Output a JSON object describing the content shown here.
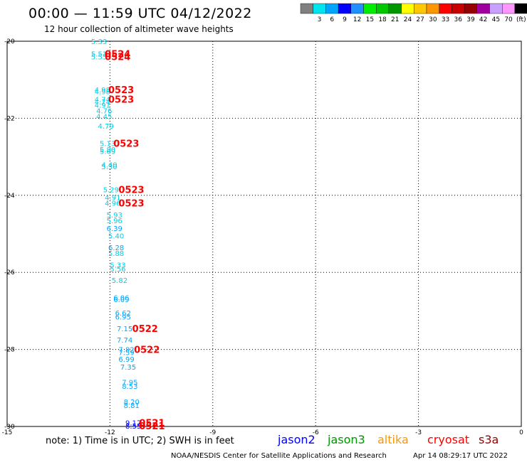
{
  "header": {
    "title": "00:00 — 11:59 UTC 04/12/2022",
    "subtitle": "12 hour collection of altimeter wave heights"
  },
  "color_scale": {
    "unit": "(ft)",
    "bins": [
      {
        "color": "#808080",
        "label": ""
      },
      {
        "color": "#00e5ee",
        "label": "3"
      },
      {
        "color": "#00a5ff",
        "label": "6"
      },
      {
        "color": "#0000ff",
        "label": "9"
      },
      {
        "color": "#1e90ff",
        "label": "12"
      },
      {
        "color": "#00ee00",
        "label": "15"
      },
      {
        "color": "#00c800",
        "label": "18"
      },
      {
        "color": "#009600",
        "label": "21"
      },
      {
        "color": "#ffff00",
        "label": "24"
      },
      {
        "color": "#ffc800",
        "label": "27"
      },
      {
        "color": "#ff9600",
        "label": "30"
      },
      {
        "color": "#ff0000",
        "label": "33"
      },
      {
        "color": "#c80000",
        "label": "36"
      },
      {
        "color": "#960000",
        "label": "39"
      },
      {
        "color": "#a000a0",
        "label": "42"
      },
      {
        "color": "#c8a0ff",
        "label": "45"
      },
      {
        "color": "#ff96ff",
        "label": "70"
      },
      {
        "color": "#000000",
        "label": ""
      }
    ]
  },
  "map": {
    "lon_min": -15,
    "lon_max": 0,
    "lat_min": -30,
    "lat_max": -20,
    "x_ticks": [
      {
        "value": -15,
        "label": "-15"
      },
      {
        "value": -12,
        "label": "-12"
      },
      {
        "value": -9,
        "label": "-9"
      },
      {
        "value": -6,
        "label": "-6"
      },
      {
        "value": -3,
        "label": "-3"
      },
      {
        "value": 0,
        "label": "0"
      }
    ],
    "y_ticks": [
      {
        "value": -20,
        "label": "-20"
      },
      {
        "value": -22,
        "label": "-22"
      },
      {
        "value": -24,
        "label": "-24"
      },
      {
        "value": -26,
        "label": "-26"
      },
      {
        "value": -28,
        "label": "-28"
      },
      {
        "value": -30,
        "label": "-30"
      }
    ],
    "swh_labels": [
      {
        "lon": -12.55,
        "lat": -20.0,
        "text": "5.33",
        "color": "#00d0e8"
      },
      {
        "lon": -12.55,
        "lat": -20.32,
        "text": "5.51",
        "color": "#00d0e8"
      },
      {
        "lon": -12.55,
        "lat": -20.4,
        "text": "5.55",
        "color": "#00d0e8"
      },
      {
        "lon": -12.45,
        "lat": -21.25,
        "text": "4.98",
        "color": "#00d0e8"
      },
      {
        "lon": -12.45,
        "lat": -21.3,
        "text": "4.98",
        "color": "#00d0e8"
      },
      {
        "lon": -12.45,
        "lat": -21.5,
        "text": "4.74",
        "color": "#00d0e8"
      },
      {
        "lon": -12.45,
        "lat": -21.57,
        "text": "4.74",
        "color": "#00d0e8"
      },
      {
        "lon": -12.45,
        "lat": -21.65,
        "text": "4.91",
        "color": "#00d0e8"
      },
      {
        "lon": -12.4,
        "lat": -21.8,
        "text": "4.76",
        "color": "#00d0e8"
      },
      {
        "lon": -12.4,
        "lat": -21.95,
        "text": "4.45",
        "color": "#00d0e8"
      },
      {
        "lon": -12.35,
        "lat": -22.2,
        "text": "4.79",
        "color": "#00d0e8"
      },
      {
        "lon": -12.3,
        "lat": -22.65,
        "text": "5.13",
        "color": "#00d0e8"
      },
      {
        "lon": -12.3,
        "lat": -22.8,
        "text": "5.80",
        "color": "#00d0e8"
      },
      {
        "lon": -12.3,
        "lat": -22.85,
        "text": "5.69",
        "color": "#00d0e8"
      },
      {
        "lon": -12.25,
        "lat": -23.2,
        "text": "4.40",
        "color": "#00d0e8"
      },
      {
        "lon": -12.25,
        "lat": -23.25,
        "text": "5.30",
        "color": "#00d0e8"
      },
      {
        "lon": -12.2,
        "lat": -23.85,
        "text": "5.29",
        "color": "#00d0e8"
      },
      {
        "lon": -12.15,
        "lat": -24.05,
        "text": "4.91",
        "color": "#00d0e8"
      },
      {
        "lon": -12.15,
        "lat": -24.2,
        "text": "4.96",
        "color": "#00d0e8"
      },
      {
        "lon": -12.1,
        "lat": -24.5,
        "text": "5.93",
        "color": "#00d0e8"
      },
      {
        "lon": -12.1,
        "lat": -24.65,
        "text": "5.96",
        "color": "#00d0e8"
      },
      {
        "lon": -12.1,
        "lat": -24.85,
        "text": "6.39",
        "color": "#00a5ff"
      },
      {
        "lon": -12.05,
        "lat": -25.05,
        "text": "5.40",
        "color": "#00d0e8"
      },
      {
        "lon": -12.05,
        "lat": -25.35,
        "text": "6.28",
        "color": "#00a5ff"
      },
      {
        "lon": -12.05,
        "lat": -25.5,
        "text": "5.88",
        "color": "#00d0e8"
      },
      {
        "lon": -12.0,
        "lat": -25.8,
        "text": "5.33",
        "color": "#00d0e8"
      },
      {
        "lon": -12.0,
        "lat": -25.9,
        "text": "5.56",
        "color": "#00d0e8"
      },
      {
        "lon": -11.95,
        "lat": -26.2,
        "text": "5.82",
        "color": "#00d0e8"
      },
      {
        "lon": -11.9,
        "lat": -26.65,
        "text": "6.06",
        "color": "#00a5ff"
      },
      {
        "lon": -11.9,
        "lat": -26.7,
        "text": "6.09",
        "color": "#00a5ff"
      },
      {
        "lon": -11.85,
        "lat": -27.05,
        "text": "6.62",
        "color": "#00a5ff"
      },
      {
        "lon": -11.85,
        "lat": -27.15,
        "text": "6.95",
        "color": "#00a5ff"
      },
      {
        "lon": -11.8,
        "lat": -27.45,
        "text": "7.15",
        "color": "#00a5ff"
      },
      {
        "lon": -11.8,
        "lat": -27.75,
        "text": "7.74",
        "color": "#00a5ff"
      },
      {
        "lon": -11.75,
        "lat": -28.0,
        "text": "7.82",
        "color": "#00a5ff"
      },
      {
        "lon": -11.75,
        "lat": -28.07,
        "text": "7.59",
        "color": "#00a5ff"
      },
      {
        "lon": -11.75,
        "lat": -28.25,
        "text": "6.99",
        "color": "#00a5ff"
      },
      {
        "lon": -11.7,
        "lat": -28.45,
        "text": "7.35",
        "color": "#00a5ff"
      },
      {
        "lon": -11.65,
        "lat": -28.85,
        "text": "7.95",
        "color": "#00a5ff"
      },
      {
        "lon": -11.65,
        "lat": -28.95,
        "text": "8.53",
        "color": "#00a5ff"
      },
      {
        "lon": -11.6,
        "lat": -29.35,
        "text": "8.20",
        "color": "#00a5ff"
      },
      {
        "lon": -11.6,
        "lat": -29.45,
        "text": "8.81",
        "color": "#00a5ff"
      },
      {
        "lon": -11.55,
        "lat": -29.9,
        "text": "9.17",
        "color": "#0000ff"
      },
      {
        "lon": -11.55,
        "lat": -29.98,
        "text": "8.55",
        "color": "#0000ff"
      }
    ],
    "time_labels": [
      {
        "lon": -12.15,
        "lat": -20.32,
        "text": "0524",
        "color": "#ff0000"
      },
      {
        "lon": -12.15,
        "lat": -20.4,
        "text": "0524",
        "color": "#ff0000"
      },
      {
        "lon": -12.05,
        "lat": -21.25,
        "text": "0523",
        "color": "#ff0000"
      },
      {
        "lon": -12.05,
        "lat": -21.5,
        "text": "0523",
        "color": "#ff0000"
      },
      {
        "lon": -11.9,
        "lat": -22.65,
        "text": "0523",
        "color": "#ff0000"
      },
      {
        "lon": -11.75,
        "lat": -23.85,
        "text": "0523",
        "color": "#ff0000"
      },
      {
        "lon": -11.75,
        "lat": -24.2,
        "text": "0523",
        "color": "#ff0000"
      },
      {
        "lon": -11.35,
        "lat": -27.45,
        "text": "0522",
        "color": "#ff0000"
      },
      {
        "lon": -11.3,
        "lat": -28.0,
        "text": "0522",
        "color": "#ff0000"
      },
      {
        "lon": -11.15,
        "lat": -29.9,
        "text": "0521",
        "color": "#ff0000"
      },
      {
        "lon": -11.15,
        "lat": -29.98,
        "text": "0521",
        "color": "#ff0000"
      }
    ]
  },
  "footer": {
    "note": "note: 1) Time is in UTC; 2) SWH is in feet",
    "satellites": [
      {
        "name": "jason2",
        "color": "#0000ff"
      },
      {
        "name": "jason3",
        "color": "#009600"
      },
      {
        "name": "altika",
        "color": "#ff9600"
      },
      {
        "name": "cryosat",
        "color": "#ff0000"
      },
      {
        "name": "s3a",
        "color": "#960000"
      }
    ],
    "credit": "NOAA/NESDIS Center for Satellite Applications and Research",
    "timestamp": "Apr 14 08:29:17 UTC 2022"
  }
}
